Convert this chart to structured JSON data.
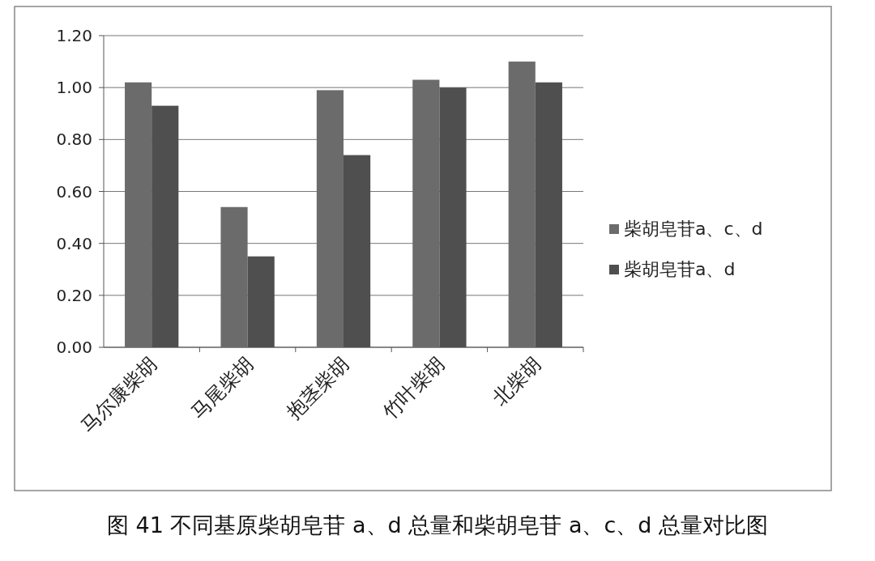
{
  "chart_data": {
    "type": "bar",
    "categories": [
      "马尔康柴胡",
      "马尾柴胡",
      "抱茎柴胡",
      "竹叶柴胡",
      "北柴胡"
    ],
    "series": [
      {
        "name": "柴胡皂苷a、c、d",
        "color": "#6b6b6b",
        "values": [
          1.02,
          0.54,
          0.99,
          1.03,
          1.1
        ]
      },
      {
        "name": "柴胡皂苷a、d",
        "color": "#4f4f4f",
        "values": [
          0.93,
          0.35,
          0.74,
          1.0,
          1.02
        ]
      }
    ],
    "ylim": [
      0,
      1.2
    ],
    "yticks": [
      {
        "value": 0,
        "label": "0.00"
      },
      {
        "value": 0.2,
        "label": "0.20"
      },
      {
        "value": 0.4,
        "label": "0.40"
      },
      {
        "value": 0.6,
        "label": "0.60"
      },
      {
        "value": 0.8,
        "label": "0.80"
      },
      {
        "value": 1.0,
        "label": "1.00"
      },
      {
        "value": 1.2,
        "label": "1.20"
      }
    ],
    "grid": "y",
    "legend": "right",
    "annotations": [
      "图 41  不同基原柴胡皂苷 a、d 总量和柴胡皂苷 a、c、d 总量对比图"
    ]
  }
}
